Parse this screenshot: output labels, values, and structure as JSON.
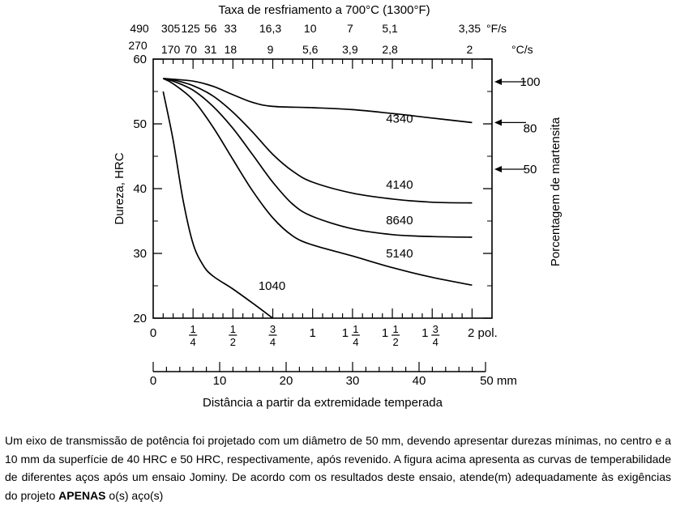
{
  "chart_data": {
    "type": "line",
    "title": "Taxa de resfriamento a 700°C (1300°F)",
    "ylabel": "Dureza, HRC",
    "ylim": [
      20,
      60
    ],
    "yticks": [
      20,
      30,
      40,
      50,
      60
    ],
    "xlabel": "Distância a partir da extremidade temperada",
    "xlim": [
      0,
      2.125
    ],
    "x_unit_note": "polegadas (pol.)",
    "inch_axis": {
      "ticks": [
        0,
        0.25,
        0.5,
        0.75,
        1,
        1.25,
        1.5,
        1.75,
        2
      ],
      "labels": [
        {
          "v": 0,
          "text": "0"
        },
        {
          "v": 0.25,
          "num": "1",
          "den": "4"
        },
        {
          "v": 0.5,
          "num": "1",
          "den": "2"
        },
        {
          "v": 0.75,
          "num": "3",
          "den": "4"
        },
        {
          "v": 1,
          "text": "1"
        },
        {
          "v": 1.25,
          "whole": "1",
          "num": "1",
          "den": "4"
        },
        {
          "v": 1.5,
          "whole": "1",
          "num": "1",
          "den": "2"
        },
        {
          "v": 1.75,
          "whole": "1",
          "num": "3",
          "den": "4"
        },
        {
          "v": 2,
          "text": "2 pol."
        }
      ]
    },
    "mm_axis": {
      "ticks": [
        0,
        10,
        20,
        30,
        40,
        50
      ],
      "labels": [
        "0",
        "10",
        "20",
        "30",
        "40",
        "50 mm"
      ]
    },
    "cooling_rate_f": {
      "unit": "°F/s",
      "ticks": [
        {
          "x": 0.0625,
          "label": "490"
        },
        {
          "x": 0.125,
          "label": "305"
        },
        {
          "x": 0.25,
          "label": "125"
        },
        {
          "x": 0.375,
          "label": "56"
        },
        {
          "x": 0.5,
          "label": "33"
        },
        {
          "x": 0.75,
          "label": "16,3"
        },
        {
          "x": 1.0,
          "label": "10"
        },
        {
          "x": 1.25,
          "label": "7"
        },
        {
          "x": 1.5,
          "label": "5,1"
        },
        {
          "x": 2.0,
          "label": "3,35"
        }
      ]
    },
    "cooling_rate_c": {
      "unit": "°C/s",
      "ticks": [
        {
          "x": 0.0625,
          "label": "270"
        },
        {
          "x": 0.125,
          "label": "170"
        },
        {
          "x": 0.25,
          "label": "70"
        },
        {
          "x": 0.375,
          "label": "31"
        },
        {
          "x": 0.5,
          "label": "18"
        },
        {
          "x": 0.75,
          "label": "9"
        },
        {
          "x": 1.0,
          "label": "5,6"
        },
        {
          "x": 1.25,
          "label": "3,9"
        },
        {
          "x": 1.5,
          "label": "2,8"
        },
        {
          "x": 2.0,
          "label": "2"
        }
      ]
    },
    "right_axis": {
      "label": "Porcentagem de martensita",
      "marks": [
        {
          "label": "100",
          "hrc": 56.5
        },
        {
          "label": "80",
          "hrc": 50.2
        },
        {
          "label": "50",
          "hrc": 43.0
        }
      ]
    },
    "series": [
      {
        "name": "4340",
        "x": [
          0.0625,
          0.25,
          0.375,
          0.5,
          0.625,
          0.75,
          1.0,
          1.25,
          1.5,
          1.75,
          2.0
        ],
        "y": [
          57,
          56.6,
          55.8,
          54.5,
          53.3,
          52.7,
          52.5,
          52.2,
          51.6,
          50.9,
          50.2
        ]
      },
      {
        "name": "4140",
        "x": [
          0.0625,
          0.125,
          0.25,
          0.375,
          0.5,
          0.625,
          0.75,
          0.875,
          1.0,
          1.25,
          1.5,
          1.75,
          2.0
        ],
        "y": [
          57,
          56.8,
          55.9,
          54.3,
          51.8,
          48.7,
          45.3,
          42.7,
          41.0,
          39.3,
          38.4,
          37.9,
          37.8
        ]
      },
      {
        "name": "8640",
        "x": [
          0.0625,
          0.125,
          0.25,
          0.375,
          0.5,
          0.625,
          0.75,
          0.875,
          1.0,
          1.25,
          1.5,
          1.75,
          2.0
        ],
        "y": [
          57,
          56.6,
          55.2,
          52.7,
          49.3,
          45.2,
          41.0,
          37.6,
          35.7,
          33.8,
          32.9,
          32.6,
          32.5
        ]
      },
      {
        "name": "5140",
        "x": [
          0.0625,
          0.125,
          0.25,
          0.375,
          0.5,
          0.625,
          0.75,
          0.875,
          1.0,
          1.25,
          1.5,
          1.75,
          2.0
        ],
        "y": [
          57,
          56.2,
          53.7,
          49.5,
          44.5,
          39.6,
          35.5,
          32.7,
          31.3,
          29.6,
          27.8,
          26.3,
          25.1
        ]
      },
      {
        "name": "1040",
        "x": [
          0.0625,
          0.125,
          0.1875,
          0.25,
          0.3125,
          0.375,
          0.5,
          0.625,
          0.75
        ],
        "y": [
          55.0,
          47.5,
          38.2,
          31.5,
          28.2,
          26.5,
          24.5,
          22.3,
          20.0
        ]
      }
    ],
    "series_label_pos": {
      "4340": {
        "x": 1.46,
        "y": 50.2
      },
      "4140": {
        "x": 1.46,
        "y": 40.0
      },
      "8640": {
        "x": 1.46,
        "y": 34.5
      },
      "5140": {
        "x": 1.46,
        "y": 29.4
      },
      "1040": {
        "x": 0.66,
        "y": 24.4
      }
    }
  },
  "question": {
    "text": "Um eixo de transmissão de potência foi projetado com um diâmetro de 50 mm, devendo apresentar durezas mínimas, no centro e a 10 mm da superfície de 40 HRC e 50 HRC, respectivamente, após revenido. A figura acima apresenta as curvas de temperabilidade de diferentes aços após um ensaio Jominy. De acordo com os resultados deste ensaio, atende(m) adequadamente às exigências do projeto ",
    "emphasis": "APENAS",
    "tail": " o(s) aço(s)"
  }
}
